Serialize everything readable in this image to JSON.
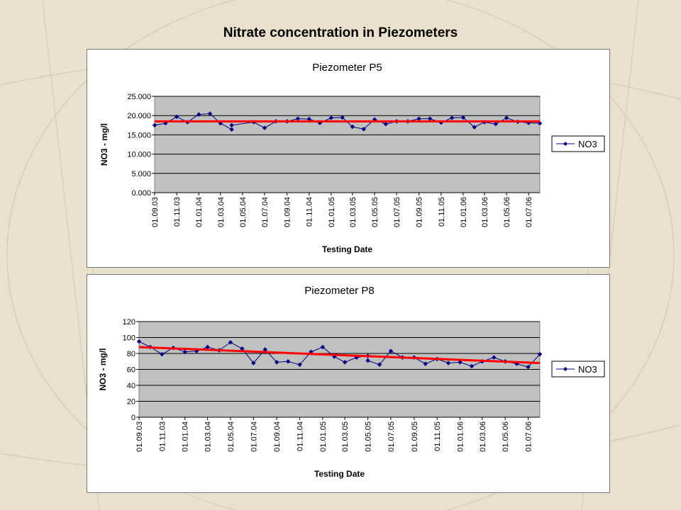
{
  "slide_title": "Nitrate concentration in Piezometers",
  "colors": {
    "series": "#000080",
    "trend": "#ff0000",
    "plot_bg": "#c0c0c0",
    "page_bg": "#e9e1cd"
  },
  "chart_data": [
    {
      "type": "line",
      "title": "Piezometer P5",
      "xlabel": "Testing Date",
      "ylabel": "NO3 - mg/l",
      "ylim": [
        0,
        25
      ],
      "yticks": [
        "0.000",
        "5.000",
        "10.000",
        "15.000",
        "20.000",
        "25.000"
      ],
      "grid": true,
      "legend": "right",
      "x_tick_labels": [
        "01.09.03",
        "01.11.03",
        "01.01.04",
        "01.03.04",
        "01.05.04",
        "01.07.04",
        "01.09.04",
        "01.11.04",
        "01.01.05",
        "01.03.05",
        "01.05.05",
        "01.07.05",
        "01.09.05",
        "01.11.05",
        "01.01.06",
        "01.03.06",
        "01.05.06",
        "01.07.06"
      ],
      "series": [
        {
          "name": "NO3",
          "x": [
            "01.09.03",
            "01.10.03",
            "01.11.03",
            "01.12.03",
            "01.01.04",
            "01.02.04",
            "01.03.04",
            "01.04.04",
            "01.04.04",
            "01.06.04",
            "01.07.04",
            "01.08.04",
            "01.09.04",
            "01.10.04",
            "01.11.04",
            "01.12.04",
            "01.01.05",
            "01.02.05",
            "01.03.05",
            "01.04.05",
            "01.05.05",
            "01.06.05",
            "01.07.05",
            "01.08.05",
            "01.09.05",
            "01.10.05",
            "01.11.05",
            "01.12.05",
            "01.01.06",
            "01.02.06",
            "01.03.06",
            "01.04.06",
            "01.05.06",
            "01.06.06",
            "01.07.06",
            "01.08.06"
          ],
          "values": [
            17.5,
            18,
            19.7,
            18.3,
            20.3,
            20.5,
            18,
            16.4,
            17.5,
            18.3,
            16.8,
            18.5,
            18.5,
            19.2,
            19.1,
            18.1,
            19.4,
            19.5,
            17.1,
            16.5,
            19,
            17.8,
            18.5,
            18.5,
            19.2,
            19.2,
            18.2,
            19.4,
            19.5,
            17,
            18.3,
            17.8,
            19.4,
            18.4,
            18.1,
            18
          ]
        }
      ],
      "trend": {
        "y_start": 18.5,
        "y_end": 18.5
      }
    },
    {
      "type": "line",
      "title": "Piezometer P8",
      "xlabel": "Testing Date",
      "ylabel": "NO3 - mg/l",
      "ylim": [
        0,
        120
      ],
      "yticks": [
        "0",
        "20",
        "40",
        "60",
        "80",
        "100",
        "120"
      ],
      "grid": true,
      "legend": "right",
      "x_tick_labels": [
        "01.09.03",
        "01.11.03",
        "01.01.04",
        "01.03.04",
        "01.05.04",
        "01.07.04",
        "01.09.04",
        "01.11.04",
        "01.01.05",
        "01.03.05",
        "01.05.05",
        "01.07.05",
        "01.09.05",
        "01.11.05",
        "01.01.06",
        "01.03.06",
        "01.05.06",
        "01.07.06"
      ],
      "series": [
        {
          "name": "NO3",
          "x": [
            "01.09.03",
            "01.10.03",
            "01.11.03",
            "01.12.03",
            "01.01.04",
            "01.02.04",
            "01.03.04",
            "01.04.04",
            "01.05.04",
            "01.06.04",
            "01.07.04",
            "01.08.04",
            "01.09.04",
            "01.10.04",
            "01.11.04",
            "01.12.04",
            "01.01.05",
            "01.02.05",
            "01.03.05",
            "01.04.05",
            "01.05.05",
            "01.05.05",
            "01.06.05",
            "01.07.05",
            "01.08.05",
            "01.09.05",
            "01.10.05",
            "01.11.05",
            "01.12.05",
            "01.01.06",
            "01.02.06",
            "01.03.06",
            "01.04.06",
            "01.05.06",
            "01.06.06",
            "01.07.06",
            "01.08.06"
          ],
          "values": [
            95,
            88,
            79,
            87,
            82,
            83,
            88,
            84,
            94,
            86,
            68,
            85,
            69,
            70,
            66,
            82,
            88,
            76,
            69,
            75,
            77,
            71,
            66,
            83,
            75,
            75,
            67,
            73,
            68,
            69,
            64,
            70,
            75,
            70,
            67,
            63,
            79
          ]
        }
      ],
      "trend": {
        "y_start": 88,
        "y_end": 68
      }
    }
  ]
}
